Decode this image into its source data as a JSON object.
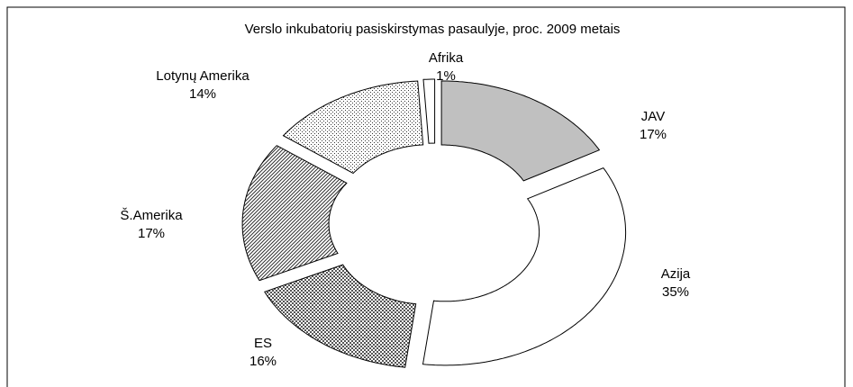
{
  "chart_data": {
    "type": "donut",
    "title": "Verslo inkubatorių pasiskirstymas pasaulyje, proc. 2009 metais",
    "categories": [
      "JAV",
      "Azija",
      "ES",
      "Š.Amerika",
      "Lotynų Amerika",
      "Afrika"
    ],
    "values": [
      17,
      35,
      16,
      17,
      14,
      1
    ],
    "value_labels": [
      "17%",
      "35%",
      "16%",
      "17%",
      "14%",
      "1%"
    ],
    "fills": [
      "solid",
      "solid",
      "checker",
      "diagonal",
      "dots",
      "solid"
    ],
    "colors": [
      "#c0c0c0",
      "#ffffff",
      "#ffffff",
      "#ffffff",
      "#ffffff",
      "#ffffff"
    ]
  }
}
